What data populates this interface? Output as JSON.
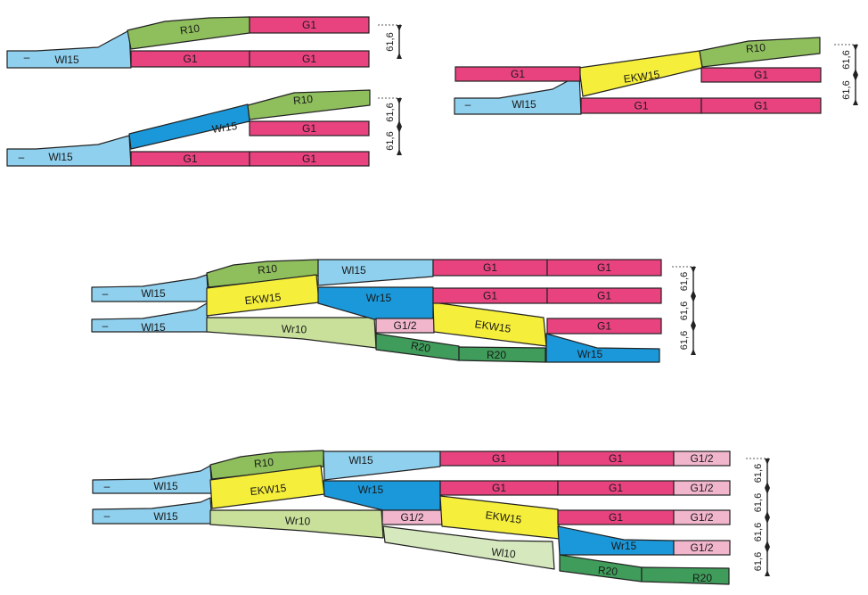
{
  "colors": {
    "G1": "#e8437f",
    "G1/2": "#f2b6cc",
    "R10": "#8fbf5c",
    "R20": "#3f9c5a",
    "Wl15": "#8fd0ee",
    "Wr15": "#1a98da",
    "EKW15": "#f5ee3a",
    "Wr10": "#c8e09a",
    "Wl10": "#d6e9be",
    "line": "#222222"
  },
  "dimension_label": "61,6",
  "track_end_mark": "–",
  "layouts": [
    {
      "id": "layout-1",
      "pieces": [
        {
          "type": "Wl15",
          "label": "Wl15"
        },
        {
          "type": "R10",
          "label": "R10"
        },
        {
          "type": "G1",
          "label": "G1"
        },
        {
          "type": "G1",
          "label": "G1"
        },
        {
          "type": "G1",
          "label": "G1"
        }
      ]
    },
    {
      "id": "layout-2",
      "pieces": [
        {
          "type": "Wl15",
          "label": "Wl15"
        },
        {
          "type": "Wr15",
          "label": "Wr15"
        },
        {
          "type": "R10",
          "label": "R10"
        },
        {
          "type": "G1",
          "label": "G1"
        },
        {
          "type": "G1",
          "label": "G1"
        },
        {
          "type": "G1",
          "label": "G1"
        }
      ]
    },
    {
      "id": "layout-3",
      "pieces": [
        {
          "type": "Wl15",
          "label": "Wl15"
        },
        {
          "type": "EKW15",
          "label": "EKW15"
        },
        {
          "type": "R10",
          "label": "R10"
        },
        {
          "type": "G1",
          "label": "G1"
        },
        {
          "type": "G1",
          "label": "G1"
        },
        {
          "type": "G1",
          "label": "G1"
        },
        {
          "type": "G1",
          "label": "G1"
        }
      ]
    },
    {
      "id": "layout-4",
      "pieces": [
        {
          "type": "Wl15",
          "label": "Wl15"
        },
        {
          "type": "Wl15",
          "label": "Wl15"
        },
        {
          "type": "R10",
          "label": "R10"
        },
        {
          "type": "EKW15",
          "label": "EKW15"
        },
        {
          "type": "Wr10",
          "label": "Wr10"
        },
        {
          "type": "Wl15",
          "label": "Wl15"
        },
        {
          "type": "Wr15",
          "label": "Wr15"
        },
        {
          "type": "G1/2",
          "label": "G1/2"
        },
        {
          "type": "R20",
          "label": "R20"
        },
        {
          "type": "R20",
          "label": "R20"
        },
        {
          "type": "EKW15",
          "label": "EKW15"
        },
        {
          "type": "Wr15",
          "label": "Wr15"
        },
        {
          "type": "G1",
          "label": "G1"
        },
        {
          "type": "G1",
          "label": "G1"
        },
        {
          "type": "G1",
          "label": "G1"
        },
        {
          "type": "G1",
          "label": "G1"
        },
        {
          "type": "G1",
          "label": "G1"
        }
      ]
    },
    {
      "id": "layout-5",
      "pieces": [
        {
          "type": "Wl15",
          "label": "Wl15"
        },
        {
          "type": "Wl15",
          "label": "Wl15"
        },
        {
          "type": "R10",
          "label": "R10"
        },
        {
          "type": "EKW15",
          "label": "EKW15"
        },
        {
          "type": "Wr10",
          "label": "Wr10"
        },
        {
          "type": "Wl15",
          "label": "Wl15"
        },
        {
          "type": "Wr15",
          "label": "Wr15"
        },
        {
          "type": "G1/2",
          "label": "G1/2"
        },
        {
          "type": "EKW15",
          "label": "EKW15"
        },
        {
          "type": "Wl10",
          "label": "Wl10"
        },
        {
          "type": "G1",
          "label": "G1"
        },
        {
          "type": "G1",
          "label": "G1"
        },
        {
          "type": "G1",
          "label": "G1"
        },
        {
          "type": "G1",
          "label": "G1"
        },
        {
          "type": "G1",
          "label": "G1"
        },
        {
          "type": "Wr15",
          "label": "Wr15"
        },
        {
          "type": "R20",
          "label": "R20"
        },
        {
          "type": "R20",
          "label": "R20"
        },
        {
          "type": "G1/2",
          "label": "G1/2"
        },
        {
          "type": "G1/2",
          "label": "G1/2"
        },
        {
          "type": "G1/2",
          "label": "G1/2"
        },
        {
          "type": "G1/2",
          "label": "G1/2"
        }
      ]
    }
  ]
}
